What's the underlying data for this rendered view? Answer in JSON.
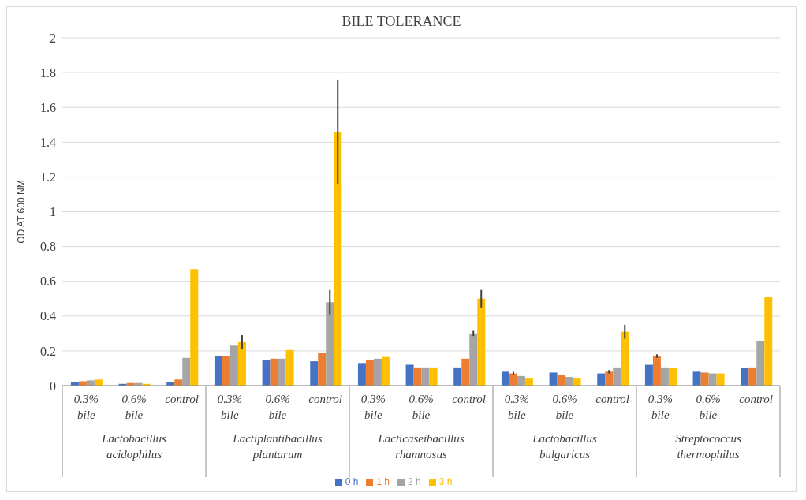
{
  "chart_data": {
    "type": "bar",
    "title": "BILE TOLERANCE",
    "ylabel": "OD AT 600 NM",
    "categories": [
      "0.3% bile",
      "0.6% bile",
      "control",
      "0.3% bile",
      "0.6% bile",
      "control",
      "0.3% bile",
      "0.6% bile",
      "control",
      "0.3% bile",
      "0.6% bile",
      "control",
      "0.3% bile",
      "0.6% bile",
      "control"
    ],
    "annotations": [
      "Lactobacillus acidophilus",
      "Lactiplantibacillus plantarum",
      "Lacticaseibacillus rhamnosus",
      "Lactobacillus bulgaricus",
      "Streptococcus thermophilus"
    ],
    "series": [
      {
        "name": "0 h",
        "color": "#4472c4",
        "values": [
          0.02,
          0.01,
          0.02,
          0.17,
          0.145,
          0.14,
          0.13,
          0.12,
          0.105,
          0.08,
          0.075,
          0.07,
          0.12,
          0.08,
          0.1
        ]
      },
      {
        "name": "1 h",
        "color": "#ed7d31",
        "values": [
          0.025,
          0.015,
          0.035,
          0.17,
          0.155,
          0.19,
          0.145,
          0.105,
          0.155,
          0.07,
          0.06,
          0.08,
          0.17,
          0.075,
          0.105
        ],
        "errors": [
          null,
          null,
          null,
          null,
          null,
          null,
          null,
          null,
          null,
          0.01,
          null,
          0.01,
          0.01,
          null,
          null
        ]
      },
      {
        "name": "2 h",
        "color": "#a5a5a5",
        "values": [
          0.03,
          0.015,
          0.16,
          0.23,
          0.155,
          0.48,
          0.155,
          0.105,
          0.3,
          0.055,
          0.05,
          0.105,
          0.105,
          0.07,
          0.255
        ],
        "errors": [
          null,
          null,
          null,
          null,
          null,
          0.07,
          null,
          null,
          0.015,
          null,
          null,
          null,
          null,
          null,
          null
        ]
      },
      {
        "name": "3 h",
        "color": "#ffc000",
        "values": [
          0.035,
          0.01,
          0.67,
          0.25,
          0.205,
          1.46,
          0.165,
          0.105,
          0.5,
          0.045,
          0.045,
          0.31,
          0.1,
          0.07,
          0.51
        ],
        "errors": [
          null,
          null,
          null,
          0.04,
          null,
          0.3,
          null,
          null,
          0.05,
          null,
          null,
          0.04,
          null,
          null,
          null
        ]
      }
    ],
    "ylim": [
      0,
      2
    ],
    "yticks": [
      0,
      0.2,
      0.4,
      0.6,
      0.8,
      1,
      1.2,
      1.4,
      1.6,
      1.8,
      2
    ],
    "grid": "y",
    "legend": "bottom"
  }
}
